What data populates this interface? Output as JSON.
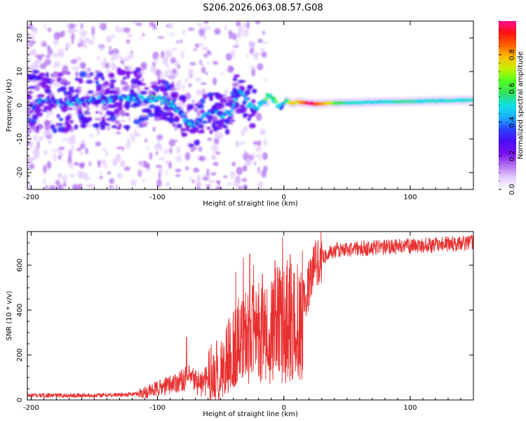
{
  "title": "S206.2026.063.08.57.G08",
  "chart_data": [
    {
      "type": "heatmap",
      "xlabel": "Height of straight line (km)",
      "ylabel": "Frequency (Hz)",
      "xlim": [
        -203,
        150
      ],
      "ylim": [
        -25,
        25
      ],
      "xticks": [
        -200,
        -100,
        0,
        100
      ],
      "yticks": [
        -20,
        -10,
        0,
        10,
        20
      ],
      "colorbar": {
        "label": "Normalized spectral amplitude",
        "range": [
          0,
          1
        ],
        "ticks": [
          0.0,
          0.2,
          0.4,
          0.6,
          0.8
        ],
        "colormap": "rainbow (white-violet-purple-blue-cyan-green-yellow-orange-red-magenta)",
        "colors": [
          "#ffffff",
          "#e3ccff",
          "#b070f0",
          "#7a10f0",
          "#4a0bf5",
          "#2a40ff",
          "#1ab0ff",
          "#10e0e0",
          "#33e060",
          "#50ff20",
          "#c0f000",
          "#ffc000",
          "#ff6000",
          "#ff1010",
          "#ff1090"
        ]
      },
      "ridge": [
        {
          "x": -185,
          "y": 1.5,
          "a": 0.35
        },
        {
          "x": -170,
          "y": 1.0,
          "a": 0.35
        },
        {
          "x": -150,
          "y": 1.5,
          "a": 0.35
        },
        {
          "x": -130,
          "y": 2.0,
          "a": 0.35
        },
        {
          "x": -115,
          "y": 2.0,
          "a": 0.4
        },
        {
          "x": -102,
          "y": 2.0,
          "a": 0.45
        },
        {
          "x": -95,
          "y": 1.5,
          "a": 0.45
        },
        {
          "x": -88,
          "y": 0.0,
          "a": 0.4
        },
        {
          "x": -82,
          "y": -2.0,
          "a": 0.4
        },
        {
          "x": -76,
          "y": -5.5,
          "a": 0.45
        },
        {
          "x": -72,
          "y": -6.5,
          "a": 0.4
        },
        {
          "x": -66,
          "y": -4.0,
          "a": 0.35
        },
        {
          "x": -60,
          "y": -2.5,
          "a": 0.35
        },
        {
          "x": -55,
          "y": -1.5,
          "a": 0.35
        },
        {
          "x": -48,
          "y": -3.0,
          "a": 0.4
        },
        {
          "x": -42,
          "y": -2.0,
          "a": 0.35
        },
        {
          "x": -38,
          "y": 2.5,
          "a": 0.35
        },
        {
          "x": -34,
          "y": 4.5,
          "a": 0.4
        },
        {
          "x": -28,
          "y": 0.0,
          "a": 0.4
        },
        {
          "x": -22,
          "y": -1.0,
          "a": 0.45
        },
        {
          "x": -16,
          "y": 1.0,
          "a": 0.5
        },
        {
          "x": -11,
          "y": 3.5,
          "a": 0.55
        },
        {
          "x": -6,
          "y": 0.5,
          "a": 0.5
        },
        {
          "x": -2,
          "y": -0.5,
          "a": 0.45
        },
        {
          "x": 2,
          "y": 1.5,
          "a": 0.55
        },
        {
          "x": 6,
          "y": 0.5,
          "a": 0.75
        },
        {
          "x": 12,
          "y": 1.0,
          "a": 0.8
        },
        {
          "x": 20,
          "y": 0.5,
          "a": 0.98
        },
        {
          "x": 30,
          "y": 0.5,
          "a": 0.85
        },
        {
          "x": 45,
          "y": 0.7,
          "a": 0.55
        },
        {
          "x": 60,
          "y": 0.8,
          "a": 0.5
        },
        {
          "x": 80,
          "y": 1.0,
          "a": 0.5
        },
        {
          "x": 100,
          "y": 1.1,
          "a": 0.55
        },
        {
          "x": 120,
          "y": 1.3,
          "a": 0.5
        },
        {
          "x": 140,
          "y": 1.5,
          "a": 0.5
        },
        {
          "x": 150,
          "y": 1.5,
          "a": 0.5
        }
      ]
    },
    {
      "type": "line",
      "xlabel": "Height of straight line (km)",
      "ylabel": "SNR (10 * v/v)",
      "xlim": [
        -203,
        150
      ],
      "ylim": [
        0,
        750
      ],
      "xticks": [
        -200,
        -100,
        0,
        100
      ],
      "yticks": [
        0,
        200,
        400,
        600
      ],
      "line_color": "#e83030",
      "trend": [
        {
          "x": -203,
          "y": 20
        },
        {
          "x": -150,
          "y": 20
        },
        {
          "x": -120,
          "y": 25
        },
        {
          "x": -105,
          "y": 40
        },
        {
          "x": -95,
          "y": 60
        },
        {
          "x": -85,
          "y": 80
        },
        {
          "x": -75,
          "y": 100
        },
        {
          "x": -65,
          "y": 70
        },
        {
          "x": -55,
          "y": 110
        },
        {
          "x": -45,
          "y": 180
        },
        {
          "x": -35,
          "y": 280
        },
        {
          "x": -25,
          "y": 330
        },
        {
          "x": -15,
          "y": 340
        },
        {
          "x": -5,
          "y": 360
        },
        {
          "x": 5,
          "y": 380
        },
        {
          "x": 12,
          "y": 390
        },
        {
          "x": 18,
          "y": 470
        },
        {
          "x": 22,
          "y": 560
        },
        {
          "x": 28,
          "y": 630
        },
        {
          "x": 40,
          "y": 665
        },
        {
          "x": 60,
          "y": 675
        },
        {
          "x": 100,
          "y": 685
        },
        {
          "x": 150,
          "y": 700
        }
      ],
      "spikes": [
        {
          "x": -77,
          "y": 280
        },
        {
          "x": -38,
          "y": 570
        },
        {
          "x": -32,
          "y": 635
        },
        {
          "x": -27,
          "y": 650
        },
        {
          "x": -24,
          "y": 600
        },
        {
          "x": -17,
          "y": 560
        },
        {
          "x": -7,
          "y": 620
        },
        {
          "x": -1,
          "y": 725
        },
        {
          "x": 5,
          "y": 650
        },
        {
          "x": 20,
          "y": 620
        }
      ]
    }
  ]
}
